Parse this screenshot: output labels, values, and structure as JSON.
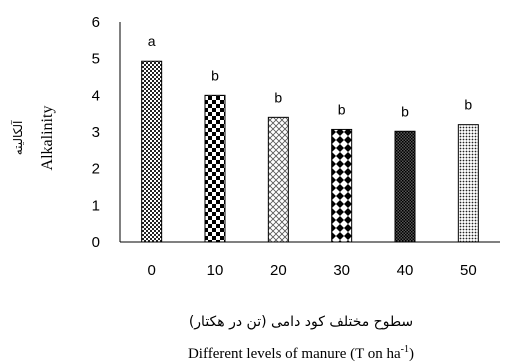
{
  "chart_data": {
    "type": "bar",
    "categories": [
      "0",
      "10",
      "20",
      "30",
      "40",
      "50"
    ],
    "values": [
      4.93,
      4.0,
      3.4,
      3.07,
      3.02,
      3.2
    ],
    "significance_letters": [
      "a",
      "b",
      "b",
      "b",
      "b",
      "b"
    ],
    "ylim": [
      0,
      6
    ],
    "yticks": [
      "0",
      "1",
      "2",
      "3",
      "4",
      "5",
      "6"
    ],
    "ylabel_fa": "آلکالیته",
    "ylabel": "Alkalinity",
    "xlabel_fa": "سطوح مختلف کود دامی (تن در هکتار)",
    "xlabel_main": "Different levels of manure (T on ha",
    "xlabel_sup": "-1",
    "xlabel_close": ")",
    "grid": false,
    "legend": "none",
    "bar_fill_patterns": [
      "checker-fine",
      "checker-large",
      "crosshatch",
      "diamond",
      "checker-dark",
      "dots"
    ]
  }
}
